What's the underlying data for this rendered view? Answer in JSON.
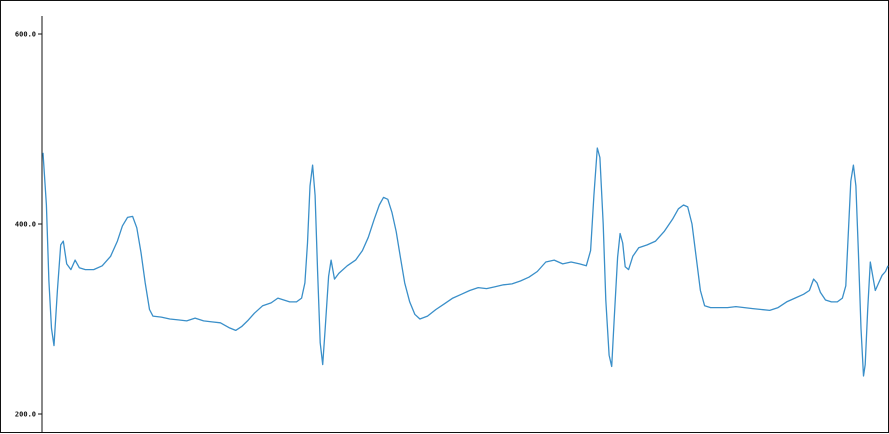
{
  "chart_data": {
    "type": "line",
    "title": "",
    "xlabel": "",
    "ylabel": "",
    "ylim": [
      200,
      600
    ],
    "xlim": [
      0,
      100
    ],
    "grid": false,
    "legend": "none",
    "y_ticks": [
      600,
      400,
      200
    ],
    "y_tick_labels": [
      "600.0",
      "400.0",
      "200.0"
    ],
    "line_color": "#3a8fc9",
    "series": [
      {
        "points": [
          [
            0.0,
            475
          ],
          [
            0.4,
            420
          ],
          [
            0.7,
            340
          ],
          [
            1.0,
            290
          ],
          [
            1.3,
            272
          ],
          [
            1.7,
            330
          ],
          [
            2.1,
            378
          ],
          [
            2.4,
            382
          ],
          [
            2.8,
            358
          ],
          [
            3.3,
            352
          ],
          [
            3.8,
            362
          ],
          [
            4.3,
            354
          ],
          [
            5.0,
            352
          ],
          [
            6.0,
            352
          ],
          [
            7.0,
            356
          ],
          [
            8.0,
            366
          ],
          [
            8.8,
            382
          ],
          [
            9.4,
            398
          ],
          [
            10.0,
            407
          ],
          [
            10.6,
            408
          ],
          [
            11.1,
            396
          ],
          [
            11.6,
            370
          ],
          [
            12.1,
            338
          ],
          [
            12.6,
            310
          ],
          [
            13.0,
            303
          ],
          [
            14.0,
            302
          ],
          [
            15.0,
            300
          ],
          [
            16.0,
            299
          ],
          [
            17.0,
            298
          ],
          [
            18.0,
            301
          ],
          [
            19.0,
            298
          ],
          [
            20.0,
            297
          ],
          [
            21.0,
            296
          ],
          [
            22.0,
            291
          ],
          [
            22.8,
            288
          ],
          [
            23.5,
            292
          ],
          [
            24.2,
            298
          ],
          [
            25.0,
            306
          ],
          [
            26.0,
            314
          ],
          [
            27.0,
            317
          ],
          [
            27.8,
            322
          ],
          [
            28.5,
            320
          ],
          [
            29.2,
            318
          ],
          [
            30.0,
            318
          ],
          [
            30.6,
            322
          ],
          [
            31.0,
            338
          ],
          [
            31.3,
            380
          ],
          [
            31.6,
            440
          ],
          [
            31.9,
            462
          ],
          [
            32.2,
            430
          ],
          [
            32.5,
            350
          ],
          [
            32.8,
            275
          ],
          [
            33.1,
            252
          ],
          [
            33.4,
            290
          ],
          [
            33.8,
            345
          ],
          [
            34.1,
            362
          ],
          [
            34.5,
            342
          ],
          [
            35.0,
            348
          ],
          [
            36.0,
            356
          ],
          [
            37.0,
            362
          ],
          [
            37.8,
            372
          ],
          [
            38.5,
            386
          ],
          [
            39.2,
            405
          ],
          [
            39.8,
            420
          ],
          [
            40.3,
            428
          ],
          [
            40.8,
            426
          ],
          [
            41.3,
            412
          ],
          [
            41.8,
            392
          ],
          [
            42.3,
            365
          ],
          [
            42.8,
            338
          ],
          [
            43.4,
            318
          ],
          [
            44.0,
            305
          ],
          [
            44.6,
            300
          ],
          [
            45.5,
            303
          ],
          [
            46.5,
            310
          ],
          [
            47.5,
            316
          ],
          [
            48.5,
            322
          ],
          [
            49.5,
            326
          ],
          [
            50.5,
            330
          ],
          [
            51.5,
            333
          ],
          [
            52.5,
            332
          ],
          [
            53.5,
            334
          ],
          [
            54.5,
            336
          ],
          [
            55.5,
            337
          ],
          [
            56.5,
            340
          ],
          [
            57.5,
            344
          ],
          [
            58.5,
            350
          ],
          [
            59.5,
            360
          ],
          [
            60.5,
            362
          ],
          [
            61.5,
            358
          ],
          [
            62.5,
            360
          ],
          [
            63.5,
            358
          ],
          [
            64.3,
            356
          ],
          [
            64.8,
            372
          ],
          [
            65.2,
            430
          ],
          [
            65.6,
            480
          ],
          [
            65.9,
            470
          ],
          [
            66.3,
            400
          ],
          [
            66.6,
            320
          ],
          [
            67.0,
            262
          ],
          [
            67.3,
            250
          ],
          [
            67.6,
            300
          ],
          [
            68.0,
            365
          ],
          [
            68.3,
            390
          ],
          [
            68.6,
            380
          ],
          [
            68.9,
            355
          ],
          [
            69.3,
            352
          ],
          [
            69.8,
            366
          ],
          [
            70.5,
            375
          ],
          [
            71.5,
            378
          ],
          [
            72.5,
            382
          ],
          [
            73.5,
            392
          ],
          [
            74.5,
            405
          ],
          [
            75.2,
            416
          ],
          [
            75.8,
            420
          ],
          [
            76.3,
            418
          ],
          [
            76.8,
            400
          ],
          [
            77.3,
            365
          ],
          [
            77.8,
            330
          ],
          [
            78.3,
            314
          ],
          [
            79.0,
            312
          ],
          [
            80.0,
            312
          ],
          [
            81.0,
            312
          ],
          [
            82.0,
            313
          ],
          [
            83.0,
            312
          ],
          [
            84.0,
            311
          ],
          [
            85.0,
            310
          ],
          [
            86.0,
            309
          ],
          [
            87.0,
            312
          ],
          [
            88.0,
            318
          ],
          [
            89.0,
            322
          ],
          [
            90.0,
            326
          ],
          [
            90.7,
            330
          ],
          [
            91.2,
            342
          ],
          [
            91.6,
            338
          ],
          [
            92.0,
            328
          ],
          [
            92.6,
            320
          ],
          [
            93.3,
            318
          ],
          [
            94.0,
            318
          ],
          [
            94.6,
            322
          ],
          [
            95.0,
            335
          ],
          [
            95.3,
            390
          ],
          [
            95.6,
            445
          ],
          [
            95.9,
            462
          ],
          [
            96.2,
            440
          ],
          [
            96.5,
            370
          ],
          [
            96.8,
            290
          ],
          [
            97.1,
            240
          ],
          [
            97.3,
            252
          ],
          [
            97.6,
            310
          ],
          [
            97.9,
            360
          ],
          [
            98.2,
            345
          ],
          [
            98.5,
            330
          ],
          [
            98.9,
            338
          ],
          [
            99.3,
            346
          ],
          [
            99.7,
            350
          ],
          [
            100.0,
            356
          ]
        ]
      }
    ]
  }
}
